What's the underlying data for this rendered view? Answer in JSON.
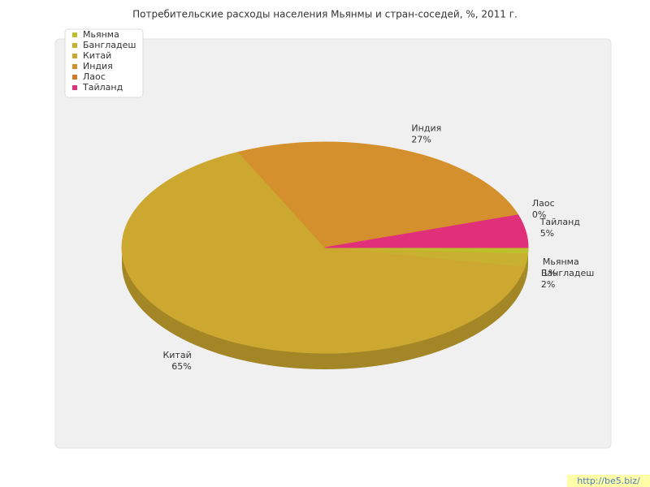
{
  "chart_data": {
    "type": "pie3d",
    "title": "Потребительские расходы населения Мьянмы и стран-соседей, %, 2011 г.",
    "categories": [
      "Мьянма",
      "Бангладеш",
      "Китай",
      "Индия",
      "Лаос",
      "Тайланд"
    ],
    "values": [
      1,
      2,
      65,
      27,
      0,
      5
    ],
    "value_labels": [
      "1%",
      "2%",
      "65%",
      "27%",
      "0%",
      "5%"
    ],
    "colors": [
      "#bcc02c",
      "#c8b030",
      "#cca830",
      "#d4902c",
      "#d27c28",
      "#e0307a"
    ],
    "legend": "top-left"
  },
  "watermark": "http://be5.biz/"
}
